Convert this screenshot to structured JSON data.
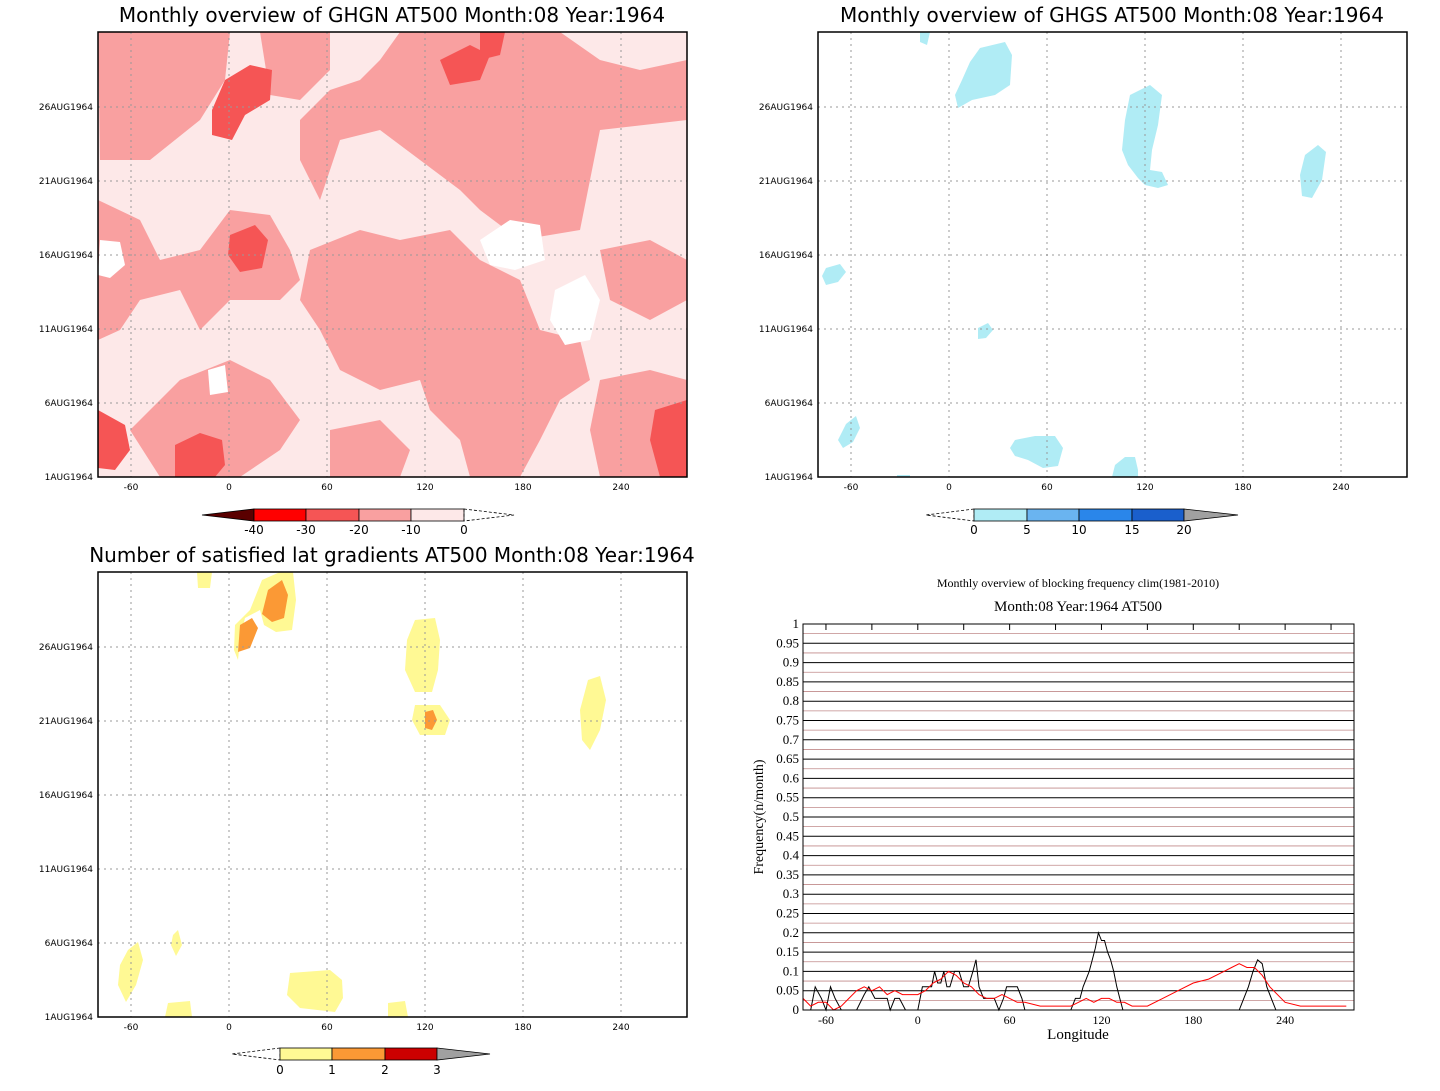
{
  "panels": {
    "ghgn": {
      "title": "Monthly overview of GHGN AT500 Month:08 Year:1964",
      "y_ticks": [
        "26AUG1964",
        "21AUG1964",
        "16AUG1964",
        "11AUG1964",
        "6AUG1964",
        "1AUG1964"
      ],
      "x_ticks": [
        "-60",
        "0",
        "60",
        "120",
        "180",
        "240"
      ],
      "colorbar_ticks": [
        "-40",
        "-30",
        "-20",
        "-10",
        "0"
      ],
      "colorbar_colors": [
        "#5a0000",
        "#ff0000",
        "#f55555",
        "#f9a0a0",
        "#fde8e8"
      ]
    },
    "ghgs": {
      "title": "Monthly overview of GHGS AT500 Month:08 Year:1964",
      "y_ticks": [
        "26AUG1964",
        "21AUG1964",
        "16AUG1964",
        "11AUG1964",
        "6AUG1964",
        "1AUG1964"
      ],
      "x_ticks": [
        "-60",
        "0",
        "60",
        "120",
        "180",
        "240"
      ],
      "colorbar_ticks": [
        "0",
        "5",
        "10",
        "15",
        "20"
      ],
      "colorbar_colors": [
        "#b0ecf5",
        "#6ab4f0",
        "#2a86ea",
        "#1a5fcc",
        "#a0a0a0"
      ]
    },
    "gradients": {
      "title": "Number of satisfied lat gradients AT500 Month:08 Year:1964",
      "y_ticks": [
        "26AUG1964",
        "21AUG1964",
        "16AUG1964",
        "11AUG1964",
        "6AUG1964",
        "1AUG1964"
      ],
      "x_ticks": [
        "-60",
        "0",
        "60",
        "120",
        "180",
        "240"
      ],
      "colorbar_ticks": [
        "0",
        "1",
        "2",
        "3"
      ],
      "colorbar_colors": [
        "#fff994",
        "#fb9935",
        "#cc0000",
        "#a0a0a0"
      ]
    }
  },
  "chart_data": {
    "type": "line",
    "title": "Monthly overview of blocking frequency clim(1981-2010)",
    "subtitle": "Month:08 Year:1964  AT500",
    "xlabel": "Longitude",
    "ylabel": "Frequency(n/month)",
    "xlim": [
      -75,
      285
    ],
    "ylim": [
      0,
      1
    ],
    "x_ticks": [
      "-60",
      "0",
      "60",
      "120",
      "180",
      "240"
    ],
    "y_ticks": [
      "0",
      "0.05",
      "0.1",
      "0.15",
      "0.2",
      "0.25",
      "0.3",
      "0.35",
      "0.4",
      "0.45",
      "0.5",
      "0.55",
      "0.6",
      "0.65",
      "0.7",
      "0.75",
      "0.8",
      "0.85",
      "0.9",
      "0.95",
      "1"
    ],
    "grid": true,
    "series": [
      {
        "color": "#000000",
        "x": [
          -75,
          -70,
          -67,
          -63,
          -60,
          -57,
          -54,
          -50,
          -40,
          -35,
          -32,
          -28,
          -25,
          -20,
          -18,
          -15,
          -12,
          -8,
          -5,
          0,
          3,
          6,
          9,
          11,
          13,
          15,
          17,
          19,
          21,
          24,
          27,
          30,
          33,
          36,
          38,
          40,
          43,
          46,
          50,
          53,
          56,
          58,
          62,
          65,
          68,
          70,
          74,
          78,
          85,
          90,
          95,
          100,
          103,
          106,
          108,
          110,
          112,
          114,
          116,
          118,
          120,
          122,
          124,
          126,
          128,
          130,
          132,
          134,
          140,
          160,
          180,
          200,
          210,
          213,
          216,
          219,
          222,
          225,
          228,
          231,
          234,
          240,
          260,
          280
        ],
        "y": [
          0,
          0,
          0.06,
          0.03,
          0,
          0.06,
          0.03,
          0,
          0,
          0.04,
          0.06,
          0.03,
          0.03,
          0.03,
          0,
          0.03,
          0.03,
          0,
          0,
          0,
          0.06,
          0.06,
          0.06,
          0.1,
          0.07,
          0.07,
          0.1,
          0.06,
          0.06,
          0.1,
          0.1,
          0.06,
          0.06,
          0.1,
          0.13,
          0.06,
          0.03,
          0.03,
          0.03,
          0,
          0.03,
          0.06,
          0.06,
          0.06,
          0.03,
          0,
          0,
          0,
          0,
          0,
          0,
          0,
          0.03,
          0.03,
          0.06,
          0.08,
          0.1,
          0.13,
          0.16,
          0.2,
          0.18,
          0.18,
          0.15,
          0.13,
          0.1,
          0.06,
          0.03,
          0,
          0,
          0,
          0,
          0,
          0,
          0.03,
          0.06,
          0.1,
          0.13,
          0.12,
          0.06,
          0.03,
          0,
          0,
          0,
          0
        ]
      },
      {
        "color": "#ff0000",
        "x": [
          -75,
          -70,
          -65,
          -60,
          -55,
          -50,
          -45,
          -40,
          -35,
          -30,
          -25,
          -20,
          -15,
          -10,
          -5,
          0,
          5,
          10,
          15,
          20,
          25,
          30,
          35,
          40,
          45,
          50,
          55,
          60,
          65,
          70,
          80,
          90,
          100,
          105,
          110,
          115,
          120,
          125,
          130,
          135,
          140,
          150,
          160,
          170,
          180,
          190,
          200,
          205,
          210,
          215,
          220,
          225,
          230,
          240,
          250,
          260,
          270,
          280
        ],
        "y": [
          0.03,
          0.01,
          0.02,
          0.02,
          0,
          0.01,
          0.03,
          0.05,
          0.06,
          0.05,
          0.06,
          0.04,
          0.05,
          0.04,
          0.04,
          0.04,
          0.05,
          0.07,
          0.08,
          0.1,
          0.09,
          0.07,
          0.06,
          0.04,
          0.03,
          0.03,
          0.04,
          0.03,
          0.02,
          0.02,
          0.01,
          0.01,
          0.01,
          0.02,
          0.03,
          0.02,
          0.03,
          0.03,
          0.02,
          0.02,
          0.01,
          0.01,
          0.03,
          0.05,
          0.07,
          0.08,
          0.1,
          0.11,
          0.12,
          0.11,
          0.11,
          0.09,
          0.06,
          0.02,
          0.01,
          0.01,
          0.01,
          0.01
        ]
      }
    ]
  }
}
